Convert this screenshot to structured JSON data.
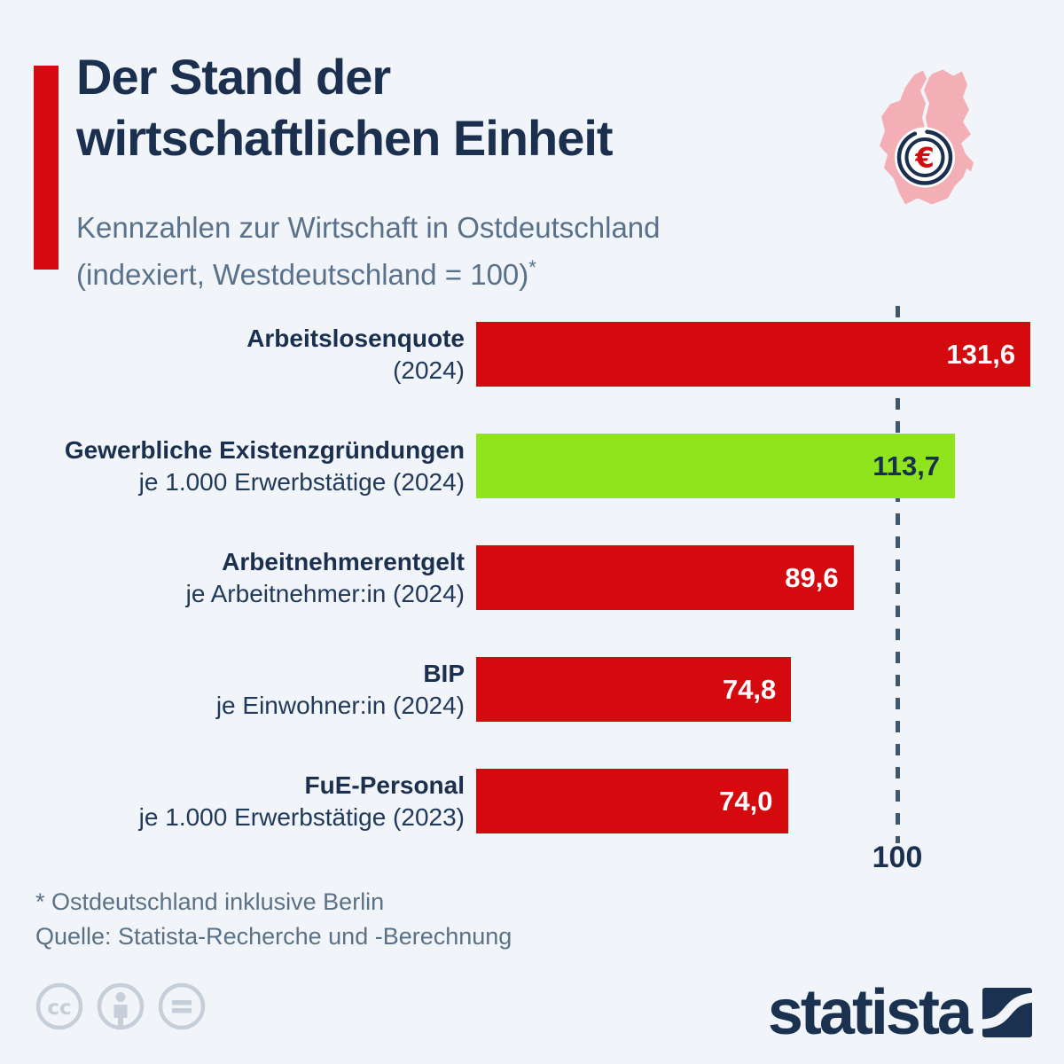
{
  "page": {
    "background_color": "#f1f4f8"
  },
  "header": {
    "title_line1": "Der Stand der",
    "title_line2": "wirtschaftlichen Einheit",
    "subtitle_line1": "Kennzahlen zur Wirtschaft in Ostdeutschland",
    "subtitle_line2": "(indexiert, Westdeutschland = 100)",
    "subtitle_footnote_marker": "*",
    "accent_color": "#d40a10",
    "title_color": "#1b2f4f",
    "subtitle_color": "#59718a"
  },
  "header_icon": {
    "name": "germany-map-euro-icon",
    "map_color": "#f4afb6",
    "coin_ring_color": "#1b2f4f",
    "euro_symbol": "€",
    "euro_color": "#d40a10"
  },
  "chart_data": {
    "type": "bar",
    "orientation": "horizontal",
    "title": "Der Stand der wirtschaftlichen Einheit",
    "subtitle": "Kennzahlen zur Wirtschaft in Ostdeutschland (indexiert, Westdeutschland = 100)*",
    "xlim": [
      0,
      140
    ],
    "grid": false,
    "reference_line": {
      "value": 100,
      "label": "100",
      "style": "dashed",
      "color": "#41576c"
    },
    "bars": [
      {
        "label": "Arbeitslosenquote",
        "sublabel": "(2024)",
        "value": 131.6,
        "display_value": "131,6",
        "color": "#d40a0f",
        "value_color": "#ffffff"
      },
      {
        "label": "Gewerbliche Existenzgründungen",
        "sublabel": "je 1.000 Erwerbstätige (2024)",
        "value": 113.7,
        "display_value": "113,7",
        "color": "#90e41e",
        "value_color": "#17304f"
      },
      {
        "label": "Arbeitnehmerentgelt",
        "sublabel": "je Arbeitnehmer:in (2024)",
        "value": 89.6,
        "display_value": "89,6",
        "color": "#d40a0f",
        "value_color": "#ffffff"
      },
      {
        "label": "BIP",
        "sublabel": "je Einwohner:in (2024)",
        "value": 74.8,
        "display_value": "74,8",
        "color": "#d40a0f",
        "value_color": "#ffffff"
      },
      {
        "label": "FuE-Personal",
        "sublabel": "je 1.000 Erwerbstätige (2023)",
        "value": 74.0,
        "display_value": "74,0",
        "color": "#d40a0f",
        "value_color": "#ffffff"
      }
    ]
  },
  "footer": {
    "footnote": "* Ostdeutschland inklusive Berlin",
    "source": "Quelle: Statista-Recherche und -Berechnung",
    "text_color": "#5b7186"
  },
  "branding": {
    "logo_text": "statista",
    "logo_color": "#1b3150",
    "license_icons": [
      "cc-icon",
      "attribution-person-icon",
      "no-derivatives-equals-icon"
    ],
    "license_icon_color": "#c6cfd9"
  }
}
